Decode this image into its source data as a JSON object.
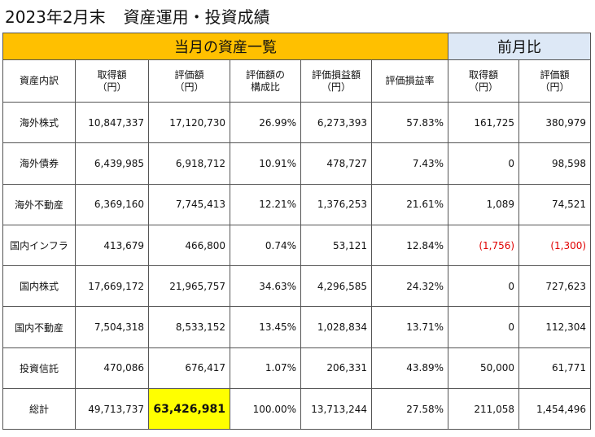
{
  "title": {
    "date": "2023年2月末",
    "text": "資産運用・投資成績"
  },
  "section_headers": {
    "current": "当月の資産一覧",
    "previous": "前月比"
  },
  "columns": [
    "資産内訳",
    "取得額\n（円）",
    "評価額\n（円）",
    "評価額の\n構成比",
    "評価損益額\n（円）",
    "評価損益率",
    "取得額\n（円）",
    "評価額\n（円）"
  ],
  "rows": [
    {
      "label": "海外株式",
      "acq": "10,847,337",
      "val": "17,120,730",
      "ratio": "26.99%",
      "pl": "6,273,393",
      "plrate": "57.83%",
      "d_acq": "161,725",
      "d_val": "380,979"
    },
    {
      "label": "海外債券",
      "acq": "6,439,985",
      "val": "6,918,712",
      "ratio": "10.91%",
      "pl": "478,727",
      "plrate": "7.43%",
      "d_acq": "0",
      "d_val": "98,598"
    },
    {
      "label": "海外不動産",
      "acq": "6,369,160",
      "val": "7,745,413",
      "ratio": "12.21%",
      "pl": "1,376,253",
      "plrate": "21.61%",
      "d_acq": "1,089",
      "d_val": "74,521"
    },
    {
      "label": "国内インフラ",
      "acq": "413,679",
      "val": "466,800",
      "ratio": "0.74%",
      "pl": "53,121",
      "plrate": "12.84%",
      "d_acq": "(1,756)",
      "d_val": "(1,300)"
    },
    {
      "label": "国内株式",
      "acq": "17,669,172",
      "val": "21,965,757",
      "ratio": "34.63%",
      "pl": "4,296,585",
      "plrate": "24.32%",
      "d_acq": "0",
      "d_val": "727,623"
    },
    {
      "label": "国内不動産",
      "acq": "7,504,318",
      "val": "8,533,152",
      "ratio": "13.45%",
      "pl": "1,028,834",
      "plrate": "13.71%",
      "d_acq": "0",
      "d_val": "112,304"
    },
    {
      "label": "投資信託",
      "acq": "470,086",
      "val": "676,417",
      "ratio": "1.07%",
      "pl": "206,331",
      "plrate": "43.89%",
      "d_acq": "50,000",
      "d_val": "61,771"
    }
  ],
  "total": {
    "label": "総計",
    "acq": "49,713,737",
    "val": "63,426,981",
    "ratio": "100.00%",
    "pl": "13,713,244",
    "plrate": "27.58%",
    "d_acq": "211,058",
    "d_val": "1,454,496"
  },
  "colors": {
    "current_header_bg": "#ffc000",
    "previous_header_bg": "#dde8f6",
    "total_value_highlight": "#ffff00",
    "negative_text": "#e00000"
  }
}
